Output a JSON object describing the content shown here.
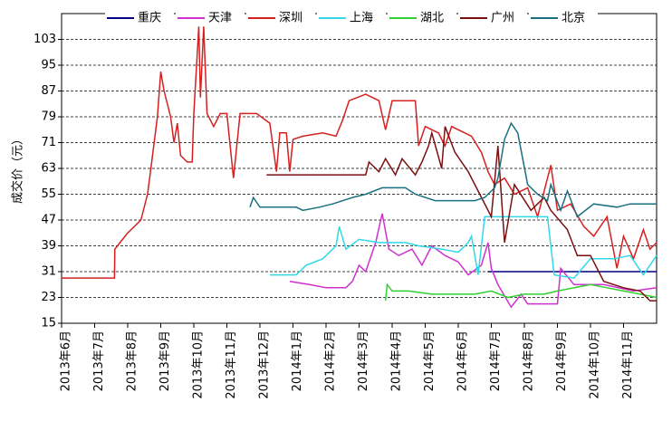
{
  "chart_data": {
    "type": "line",
    "y_label": "成交价（元）",
    "ylim": [
      15,
      111
    ],
    "yticks": [
      15,
      23,
      31,
      39,
      47,
      55,
      63,
      71,
      79,
      87,
      95,
      103
    ],
    "xlim": [
      0,
      18
    ],
    "xticks": [
      {
        "value": 0,
        "label": "2013年6月"
      },
      {
        "value": 1,
        "label": "2013年7月"
      },
      {
        "value": 2,
        "label": "2013年8月"
      },
      {
        "value": 3,
        "label": "2013年9月"
      },
      {
        "value": 4,
        "label": "2013年10月"
      },
      {
        "value": 5,
        "label": "2013年11月"
      },
      {
        "value": 6,
        "label": "2013年12月"
      },
      {
        "value": 7,
        "label": "2014年1月"
      },
      {
        "value": 8,
        "label": "2014年2月"
      },
      {
        "value": 9,
        "label": "2014年3月"
      },
      {
        "value": 10,
        "label": "2014年4月"
      },
      {
        "value": 11,
        "label": "2014年5月"
      },
      {
        "value": 12,
        "label": "2014年6月"
      },
      {
        "value": 13,
        "label": "2014年7月"
      },
      {
        "value": 14,
        "label": "2014年8月"
      },
      {
        "value": 15,
        "label": "2014年9月"
      },
      {
        "value": 16,
        "label": "2014年10月"
      },
      {
        "value": 17,
        "label": "2014年11月"
      }
    ],
    "grid": true,
    "legend": "top",
    "series": [
      {
        "name": "重庆",
        "color": "#000080",
        "x": [
          12.9,
          18
        ],
        "values": [
          31,
          31
        ]
      },
      {
        "name": "天津",
        "color": "#d030d0",
        "x": [
          6.9,
          7.5,
          8.0,
          8.6,
          8.8,
          9.0,
          9.2,
          9.5,
          9.7,
          9.9,
          10.2,
          10.6,
          10.9,
          11.2,
          11.6,
          12.0,
          12.3,
          12.7,
          12.9,
          13.0,
          13.2,
          13.6,
          13.9,
          14.1,
          15.0,
          15.1,
          15.5,
          16.4,
          17.3,
          18
        ],
        "values": [
          28,
          27,
          26,
          26,
          28,
          33,
          31,
          40,
          49,
          38,
          36,
          38,
          33,
          39,
          36,
          34,
          30,
          33,
          40,
          32,
          27,
          20,
          24,
          21,
          21,
          32,
          27,
          27,
          25,
          26
        ]
      },
      {
        "name": "深圳",
        "color": "#d62020",
        "x": [
          0,
          1.6,
          1.61,
          2.0,
          2.4,
          2.6,
          2.7,
          2.9,
          3.0,
          3.1,
          3.3,
          3.4,
          3.5,
          3.6,
          3.8,
          3.95,
          4.0,
          4.15,
          4.2,
          4.3,
          4.4,
          4.6,
          4.8,
          5.0,
          5.2,
          5.4,
          5.9,
          6.3,
          6.5,
          6.6,
          6.8,
          6.9,
          7.0,
          7.3,
          7.9,
          8.3,
          8.5,
          8.7,
          9.2,
          9.6,
          9.8,
          10.0,
          10.7,
          10.8,
          11.0,
          11.4,
          11.6,
          11.8,
          12.4,
          12.7,
          12.9,
          13.1,
          13.4,
          13.7,
          14.1,
          14.4,
          14.8,
          15.0,
          15.4,
          15.8,
          16.1,
          16.5,
          16.8,
          17.0,
          17.3,
          17.6,
          17.8,
          18
        ],
        "values": [
          29,
          29,
          38,
          43,
          47,
          55,
          63,
          79,
          93,
          87,
          79,
          71,
          77,
          67,
          65,
          65,
          80,
          107,
          85,
          107,
          80,
          76,
          80,
          80,
          60,
          80,
          80,
          77,
          62,
          74,
          74,
          62,
          72,
          73,
          74,
          73,
          78,
          84,
          86,
          84,
          75,
          84,
          84,
          70,
          76,
          74,
          70,
          76,
          73,
          68,
          62,
          58,
          60,
          55,
          57,
          48,
          64,
          50,
          52,
          45,
          42,
          48,
          32,
          42,
          35,
          44,
          38,
          40
        ]
      },
      {
        "name": "上海",
        "color": "#30d8e8",
        "x": [
          6.3,
          7.1,
          7.4,
          7.9,
          8.3,
          8.4,
          8.6,
          9.0,
          9.6,
          10.4,
          10.8,
          11.5,
          12.0,
          12.3,
          12.4,
          12.6,
          12.8,
          14.1,
          14.7,
          14.9,
          15.5,
          16.0,
          16.7,
          17.2,
          17.6,
          18
        ],
        "values": [
          30,
          30,
          33,
          35,
          39,
          45,
          38,
          41,
          40,
          40,
          39,
          38,
          37,
          40,
          42,
          30,
          48,
          48,
          48,
          30,
          29,
          35,
          35,
          36,
          30,
          36
        ]
      },
      {
        "name": "湖北",
        "color": "#30d030",
        "x": [
          9.8,
          9.85,
          10.0,
          10.5,
          11.2,
          12.5,
          13.0,
          13.5,
          14.0,
          14.6,
          15.0,
          15.5,
          16.0,
          16.5,
          17.0,
          17.5,
          18
        ],
        "values": [
          22,
          27,
          25,
          25,
          24,
          24,
          25,
          23,
          24,
          24,
          25,
          26,
          27,
          26,
          25,
          24,
          23
        ]
      },
      {
        "name": "广州",
        "color": "#7a1010",
        "x": [
          6.2,
          9.2,
          9.3,
          9.6,
          9.8,
          10.1,
          10.3,
          10.7,
          10.9,
          11.1,
          11.2,
          11.5,
          11.6,
          11.9,
          12.3,
          12.6,
          13.0,
          13.2,
          13.4,
          13.7,
          14.2,
          14.6,
          14.8,
          15.3,
          15.6,
          16.0,
          16.4,
          17.0,
          17.5,
          17.8,
          18
        ],
        "values": [
          61,
          61,
          65,
          62,
          66,
          61,
          66,
          61,
          65,
          70,
          74,
          63,
          76,
          68,
          62,
          56,
          48,
          70,
          40,
          58,
          50,
          54,
          50,
          44,
          36,
          36,
          28,
          26,
          25,
          22,
          22
        ]
      },
      {
        "name": "北京",
        "color": "#1a7080",
        "x": [
          5.7,
          5.8,
          6.0,
          7.1,
          7.3,
          7.8,
          8.2,
          8.8,
          9.2,
          9.7,
          10.4,
          10.7,
          11.3,
          12.5,
          12.8,
          13.1,
          13.2,
          13.4,
          13.6,
          13.8,
          14.1,
          14.4,
          14.7,
          14.8,
          15.1,
          15.3,
          15.6,
          16.1,
          16.8,
          17.2,
          18
        ],
        "values": [
          51,
          54,
          51,
          51,
          50,
          51,
          52,
          54,
          55,
          57,
          57,
          55,
          53,
          53,
          54,
          57,
          60,
          72,
          77,
          74,
          58,
          55,
          53,
          58,
          50,
          56,
          48,
          52,
          51,
          52,
          52
        ]
      }
    ]
  }
}
